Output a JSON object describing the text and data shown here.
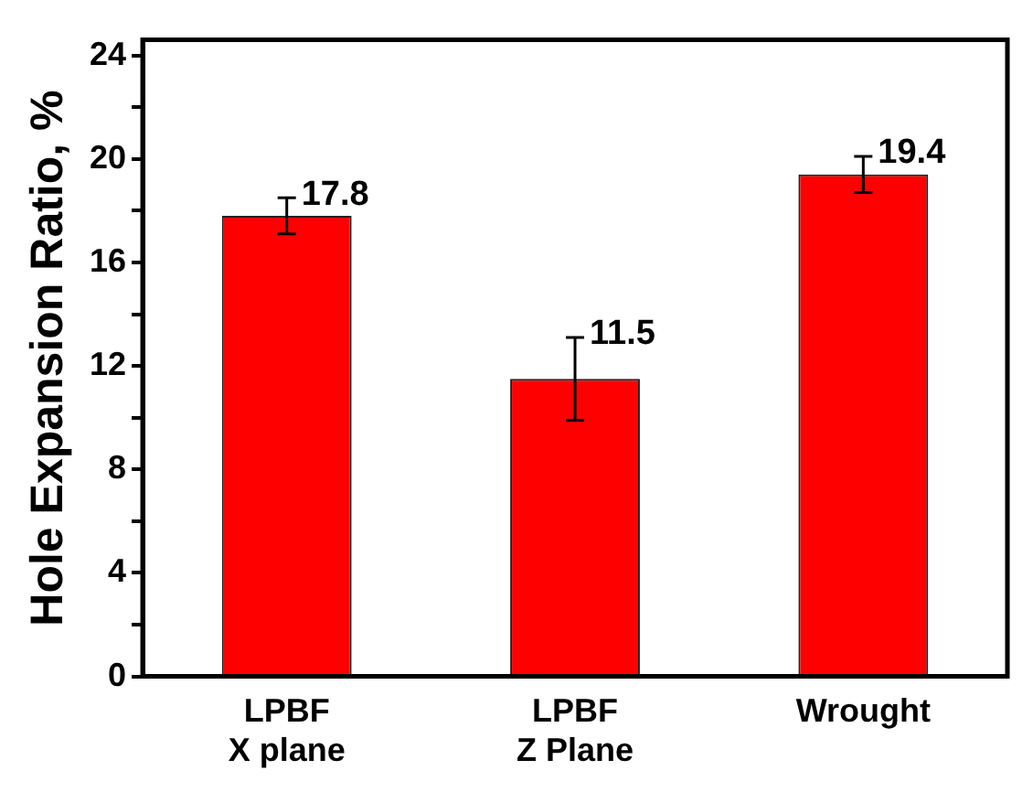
{
  "chart_data": {
    "type": "bar",
    "ylabel": "Hole Expansion Ratio, %",
    "categories": [
      "LPBF\nX plane",
      "LPBF\nZ Plane",
      "Wrought"
    ],
    "values": [
      17.8,
      11.5,
      19.4
    ],
    "errors": [
      0.7,
      1.6,
      0.7
    ],
    "color": "#ff0000",
    "ylim": [
      0,
      24.6
    ],
    "yticks": [
      0,
      {
        "value": 2,
        "label": null
      },
      4,
      {
        "value": 6,
        "label": null
      },
      8,
      {
        "value": 10,
        "label": null
      },
      12,
      {
        "value": 14,
        "label": null
      },
      16,
      {
        "value": 18,
        "label": null
      },
      20,
      {
        "value": 22,
        "label": null
      },
      24
    ],
    "data_labels": true,
    "grid": false,
    "legend": false
  }
}
